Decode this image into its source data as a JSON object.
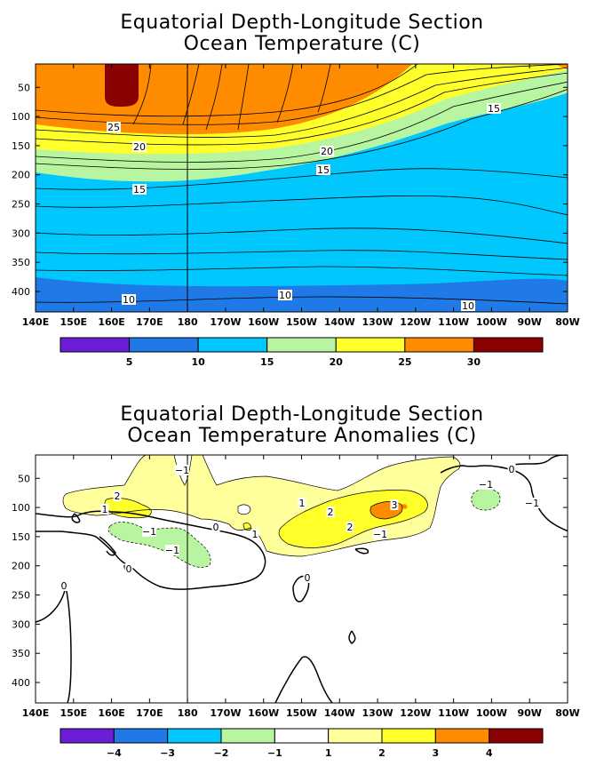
{
  "chart_data": [
    {
      "type": "heatmap",
      "title": "Equatorial Depth-Longitude Section",
      "subtitle": "Ocean Temperature (C)",
      "x_ticks": [
        "140E",
        "150E",
        "160E",
        "170E",
        "180",
        "170W",
        "160W",
        "150W",
        "140W",
        "130W",
        "120W",
        "110W",
        "100W",
        "90W",
        "80W"
      ],
      "y_ticks": [
        50,
        100,
        150,
        200,
        250,
        300,
        350,
        400
      ],
      "xlim": [
        "140E",
        "80W"
      ],
      "ylim": [
        435,
        10
      ],
      "y_reversed": true,
      "grid": false,
      "colorbar": {
        "levels": [
          0,
          5,
          10,
          15,
          20,
          25,
          30,
          35
        ],
        "labels": [
          "5",
          "10",
          "15",
          "20",
          "25",
          "30"
        ],
        "colors": [
          "#6a1fd6",
          "#1f7ae8",
          "#00c8ff",
          "#b8f5a0",
          "#ffff2a",
          "#ff8c00",
          "#8b0000"
        ]
      },
      "contour_labels": [
        "25",
        "20",
        "20",
        "15",
        "15",
        "15",
        "10",
        "10",
        "10"
      ]
    },
    {
      "type": "heatmap",
      "title": "Equatorial Depth-Longitude Section",
      "subtitle": "Ocean Temperature Anomalies (C)",
      "x_ticks": [
        "140E",
        "150E",
        "160E",
        "170E",
        "180",
        "170W",
        "160W",
        "150W",
        "140W",
        "130W",
        "120W",
        "110W",
        "100W",
        "90W",
        "80W"
      ],
      "y_ticks": [
        50,
        100,
        150,
        200,
        250,
        300,
        350,
        400
      ],
      "xlim": [
        "140E",
        "80W"
      ],
      "ylim": [
        435,
        10
      ],
      "y_reversed": true,
      "grid": false,
      "colorbar": {
        "levels": [
          -5,
          -4,
          -3,
          -2,
          -1,
          1,
          2,
          3,
          4,
          5
        ],
        "labels": [
          "-4",
          "-3",
          "-2",
          "-1",
          "1",
          "2",
          "3",
          "4"
        ],
        "colors": [
          "#6a1fd6",
          "#1f7ae8",
          "#00c8ff",
          "#b8f5a0",
          "#ffffff",
          "#ffff9c",
          "#ffff2a",
          "#ff8c00",
          "#8b0000"
        ]
      },
      "contour_labels": [
        "-1",
        "2",
        "1",
        "-1",
        "-1",
        "0",
        "1",
        "1",
        "2",
        "2",
        "3",
        "-1",
        "-1",
        "0",
        "-1",
        "0",
        "0",
        "0"
      ]
    }
  ]
}
